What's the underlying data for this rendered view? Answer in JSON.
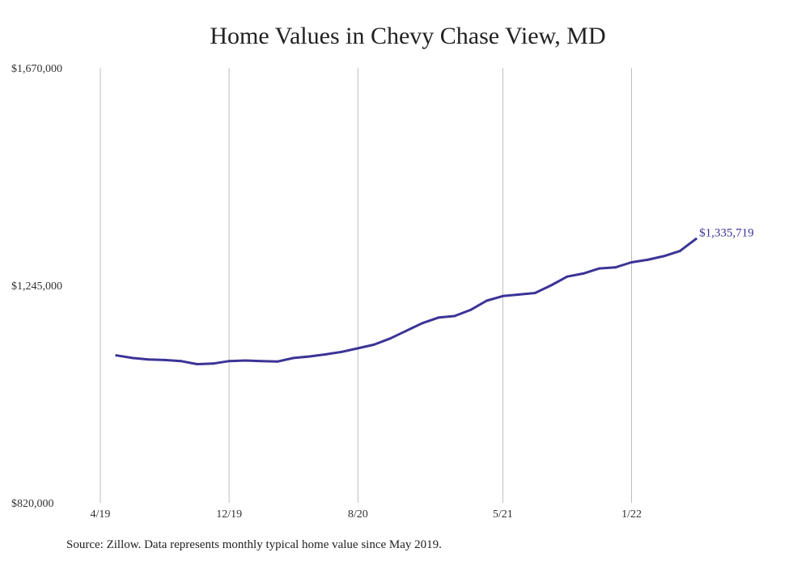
{
  "chart_data": {
    "type": "line",
    "title": "Home Values in Chevy Chase View, MD",
    "source_note": "Source: Zillow. Data represents monthly typical home value since May 2019.",
    "xlabel": "",
    "ylabel": "",
    "ylim": [
      820000,
      1670000
    ],
    "y_ticks": [
      {
        "value": 820000,
        "label": "$820,000"
      },
      {
        "value": 1245000,
        "label": "$1,245,000"
      },
      {
        "value": 1670000,
        "label": "$1,670,000"
      }
    ],
    "x_ticks": [
      {
        "date": "2019-04",
        "label": "4/19"
      },
      {
        "date": "2019-12",
        "label": "12/19"
      },
      {
        "date": "2020-08",
        "label": "8/20"
      },
      {
        "date": "2021-05",
        "label": "5/21"
      },
      {
        "date": "2022-01",
        "label": "1/22"
      }
    ],
    "x_range": [
      "2019-04",
      "2022-06"
    ],
    "grid": "vertical",
    "line_color": "#3b3496",
    "series": [
      {
        "name": "",
        "x": [
          "2019-05",
          "2019-06",
          "2019-07",
          "2019-08",
          "2019-09",
          "2019-10",
          "2019-11",
          "2019-12",
          "2020-01",
          "2020-02",
          "2020-03",
          "2020-04",
          "2020-05",
          "2020-06",
          "2020-07",
          "2020-08",
          "2020-09",
          "2020-10",
          "2020-11",
          "2020-12",
          "2021-01",
          "2021-02",
          "2021-03",
          "2021-04",
          "2021-05",
          "2021-06",
          "2021-07",
          "2021-08",
          "2021-09",
          "2021-10",
          "2021-11",
          "2021-12",
          "2022-01",
          "2022-02",
          "2022-03",
          "2022-04",
          "2022-05"
        ],
        "values": [
          1108000,
          1103000,
          1100000,
          1099000,
          1097000,
          1091000,
          1092000,
          1097000,
          1098000,
          1097000,
          1096000,
          1103000,
          1106000,
          1110000,
          1115000,
          1122000,
          1129000,
          1141000,
          1156000,
          1171000,
          1182000,
          1185000,
          1197000,
          1215000,
          1224000,
          1227000,
          1230000,
          1245000,
          1262000,
          1268000,
          1278000,
          1280000,
          1290000,
          1295000,
          1302000,
          1312000,
          1335719
        ]
      }
    ],
    "end_label": "$1,335,719"
  }
}
